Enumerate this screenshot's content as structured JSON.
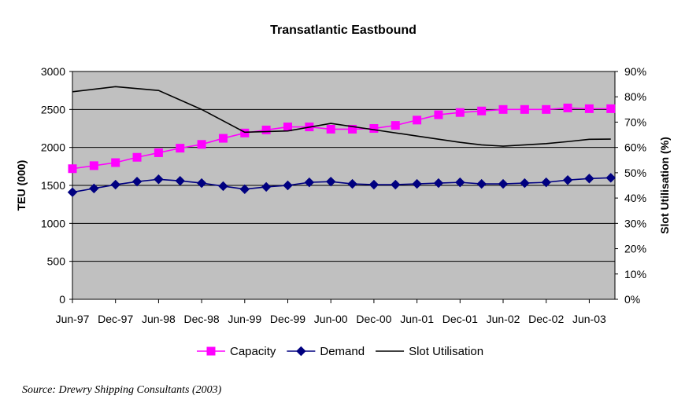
{
  "chart_data": {
    "type": "line",
    "title": "Transatlantic Eastbound",
    "ylabel": "TEU (000)",
    "y2label": "Slot Utilisation (%)",
    "ylim": [
      0,
      3000
    ],
    "y2lim": [
      0,
      90
    ],
    "yticks": [
      "0",
      "500",
      "1000",
      "1500",
      "2000",
      "2500",
      "3000"
    ],
    "y2ticks": [
      "0%",
      "10%",
      "20%",
      "30%",
      "40%",
      "50%",
      "60%",
      "70%",
      "80%",
      "90%"
    ],
    "x_tick_labels": [
      "Jun-97",
      "Dec-97",
      "Jun-98",
      "Dec-98",
      "Jun-99",
      "Dec-99",
      "Jun-00",
      "Dec-00",
      "Jun-01",
      "Dec-01",
      "Jun-02",
      "Dec-02",
      "Jun-03"
    ],
    "grid": true,
    "legend_position": "bottom",
    "background_color": "#c0c0c0",
    "series": [
      {
        "name": "Capacity",
        "axis": "left",
        "color": "#ff00ff",
        "marker": "square",
        "x": [
          "Jun-97",
          "Sep-97",
          "Dec-97",
          "Mar-98",
          "Jun-98",
          "Sep-98",
          "Dec-98",
          "Mar-99",
          "Jun-99",
          "Sep-99",
          "Dec-99",
          "Mar-00",
          "Jun-00",
          "Sep-00",
          "Dec-00",
          "Mar-01",
          "Jun-01",
          "Sep-01",
          "Dec-01",
          "Mar-02",
          "Jun-02",
          "Sep-02",
          "Dec-02",
          "Mar-03",
          "Jun-03",
          "Sep-03"
        ],
        "values": [
          1720,
          1760,
          1800,
          1870,
          1930,
          1990,
          2040,
          2120,
          2190,
          2230,
          2270,
          2270,
          2240,
          2240,
          2250,
          2290,
          2360,
          2430,
          2460,
          2480,
          2500,
          2500,
          2500,
          2520,
          2510,
          2510
        ]
      },
      {
        "name": "Demand",
        "axis": "left",
        "color": "#000080",
        "marker": "diamond",
        "x": [
          "Jun-97",
          "Sep-97",
          "Dec-97",
          "Mar-98",
          "Jun-98",
          "Sep-98",
          "Dec-98",
          "Mar-99",
          "Jun-99",
          "Sep-99",
          "Dec-99",
          "Mar-00",
          "Jun-00",
          "Sep-00",
          "Dec-00",
          "Mar-01",
          "Jun-01",
          "Sep-01",
          "Dec-01",
          "Mar-02",
          "Jun-02",
          "Sep-02",
          "Dec-02",
          "Mar-03",
          "Jun-03",
          "Sep-03"
        ],
        "values": [
          1410,
          1460,
          1510,
          1550,
          1580,
          1560,
          1530,
          1490,
          1450,
          1480,
          1500,
          1540,
          1550,
          1520,
          1510,
          1510,
          1520,
          1530,
          1540,
          1520,
          1520,
          1530,
          1540,
          1570,
          1590,
          1600
        ]
      },
      {
        "name": "Slot Utilisation",
        "axis": "right",
        "color": "#000000",
        "marker": "none",
        "x": [
          "Jun-97",
          "Dec-97",
          "Jun-98",
          "Dec-98",
          "Jun-99",
          "Dec-99",
          "Jun-00",
          "Dec-00",
          "Jun-01",
          "Dec-01",
          "Mar-02",
          "Jun-02",
          "Dec-02",
          "Mar-03",
          "Jun-03",
          "Sep-03"
        ],
        "values": [
          82,
          84,
          82.5,
          75,
          66,
          66.5,
          69.5,
          67,
          64.5,
          62,
          61,
          60.5,
          61.5,
          62.3,
          63.2,
          63.3
        ]
      }
    ]
  },
  "source": "Source: Drewry Shipping Consultants (2003)"
}
